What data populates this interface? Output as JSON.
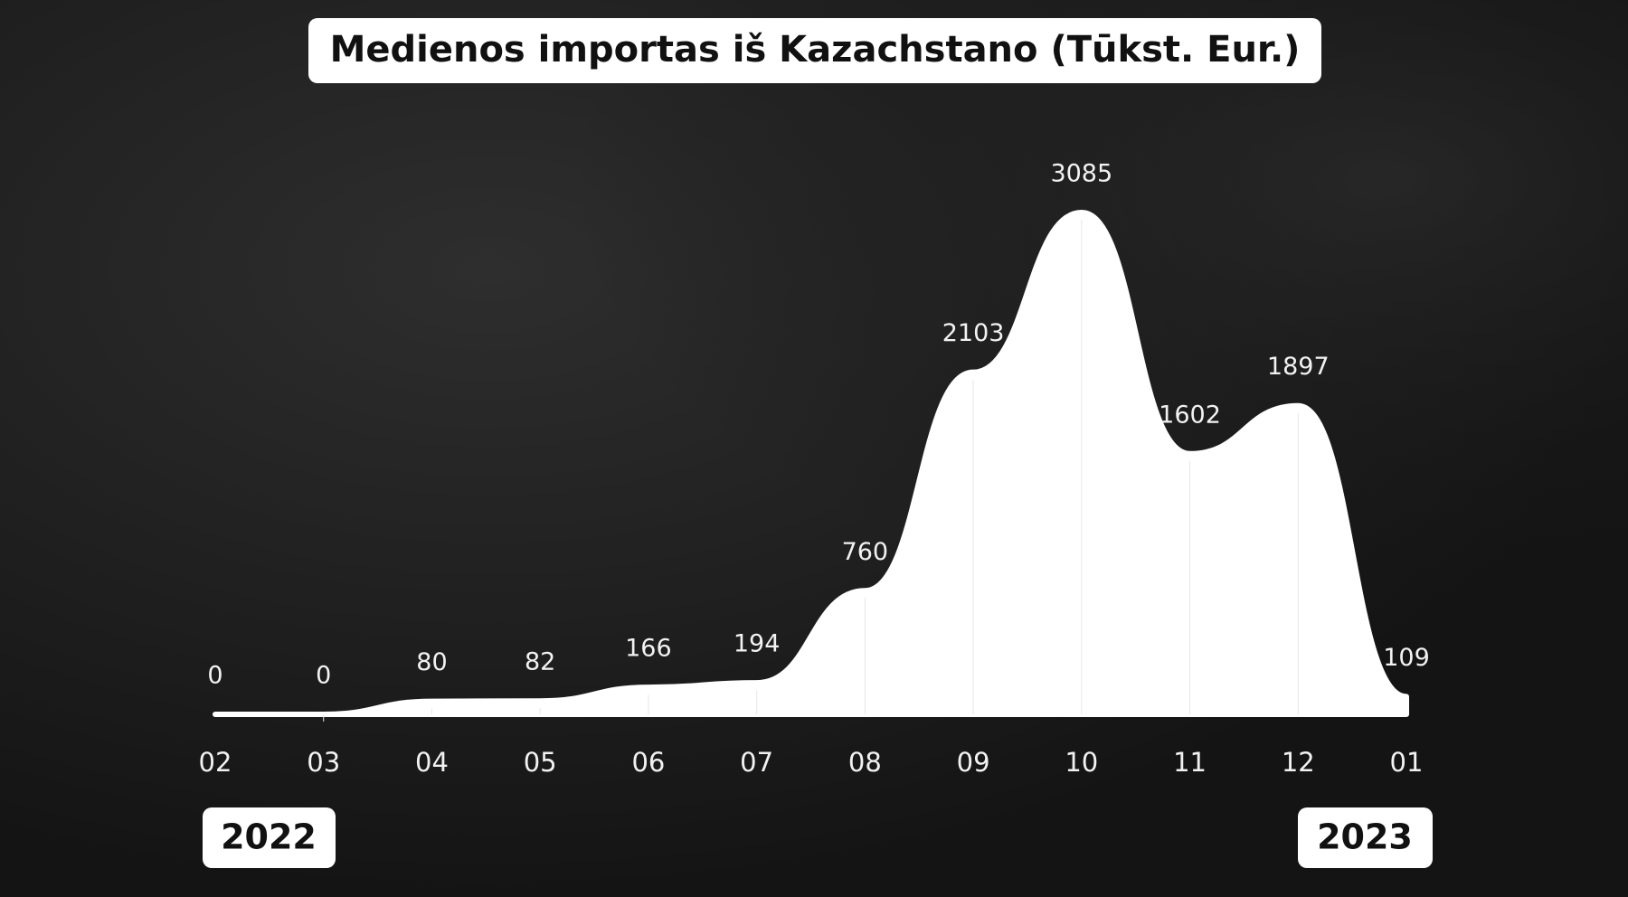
{
  "chart_data": {
    "type": "area",
    "title": "Medienos importas iš Kazachstano (Tūkst. Eur.)",
    "categories": [
      "02",
      "03",
      "04",
      "05",
      "06",
      "07",
      "08",
      "09",
      "10",
      "11",
      "12",
      "01"
    ],
    "values": [
      0,
      0,
      80,
      82,
      166,
      194,
      760,
      2103,
      3085,
      1602,
      1897,
      109
    ],
    "color": "#ffffff",
    "annotations": [
      "2022",
      "2023"
    ]
  }
}
